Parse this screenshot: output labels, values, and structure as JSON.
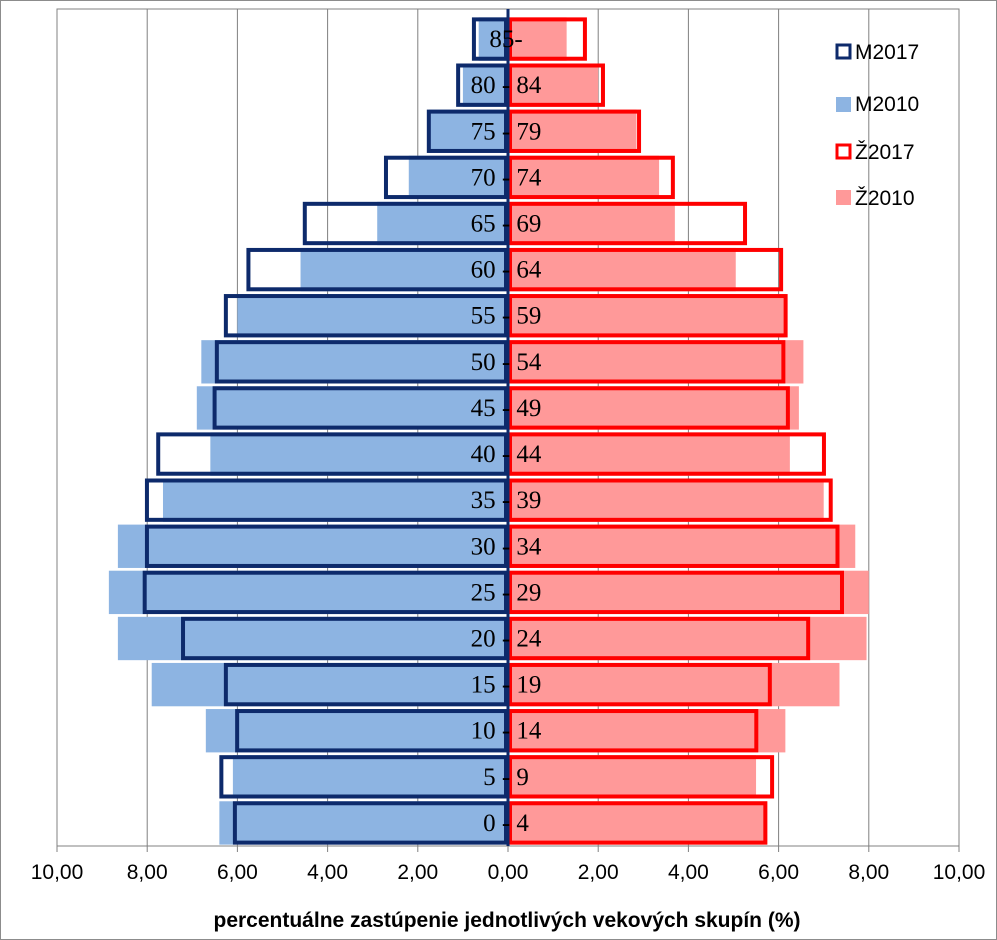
{
  "chart_data": {
    "type": "bar",
    "orientation": "horizontal-population-pyramid",
    "categories": [
      "0 - 4",
      "5 - 9",
      "10 - 14",
      "15 - 19",
      "20 - 24",
      "25 - 29",
      "30 - 34",
      "35 - 39",
      "40 - 44",
      "45 - 49",
      "50 - 54",
      "55 - 59",
      "60 - 64",
      "65 - 69",
      "70 - 74",
      "75 - 79",
      "80 - 84",
      "85-"
    ],
    "series": [
      {
        "name": "M2010",
        "side": "left",
        "style": "filled",
        "color": "#8db4e2",
        "values": [
          6.4,
          6.1,
          6.7,
          7.9,
          8.65,
          8.85,
          8.65,
          7.65,
          6.6,
          6.9,
          6.8,
          6.0,
          4.6,
          2.9,
          2.2,
          1.75,
          1.0,
          0.65
        ]
      },
      {
        "name": "M2017",
        "side": "left",
        "style": "outline",
        "color": "#0d2a6b",
        "values": [
          6.1,
          6.4,
          6.05,
          6.3,
          7.25,
          8.1,
          8.05,
          8.05,
          7.8,
          6.55,
          6.5,
          6.3,
          5.8,
          4.55,
          2.75,
          1.8,
          1.15,
          0.8
        ]
      },
      {
        "name": "Ž2010",
        "side": "right",
        "style": "filled",
        "color": "#ff9999",
        "values": [
          5.75,
          5.5,
          6.15,
          7.35,
          7.95,
          8.0,
          7.7,
          7.0,
          6.25,
          6.45,
          6.55,
          6.15,
          5.05,
          3.7,
          3.35,
          2.85,
          2.0,
          1.3
        ]
      },
      {
        "name": "Ž2017",
        "side": "right",
        "style": "outline",
        "color": "#ff0000",
        "values": [
          5.75,
          5.9,
          5.55,
          5.85,
          6.7,
          7.45,
          7.35,
          7.2,
          7.05,
          6.25,
          6.15,
          6.2,
          6.1,
          5.3,
          3.7,
          2.95,
          2.15,
          1.75
        ]
      }
    ],
    "x_ticks": [
      "10,00",
      "8,00",
      "6,00",
      "4,00",
      "2,00",
      "0,00",
      "2,00",
      "4,00",
      "6,00",
      "8,00",
      "10,00"
    ],
    "xlim": [
      -10,
      10
    ],
    "xlabel": "percentuálne zastúpenie jednotlivých vekových skupín (%)",
    "grid": "vertical",
    "legend": {
      "position": "top-right",
      "items": [
        "M2017",
        "M2010",
        "Ž2017",
        "Ž2010"
      ]
    }
  }
}
